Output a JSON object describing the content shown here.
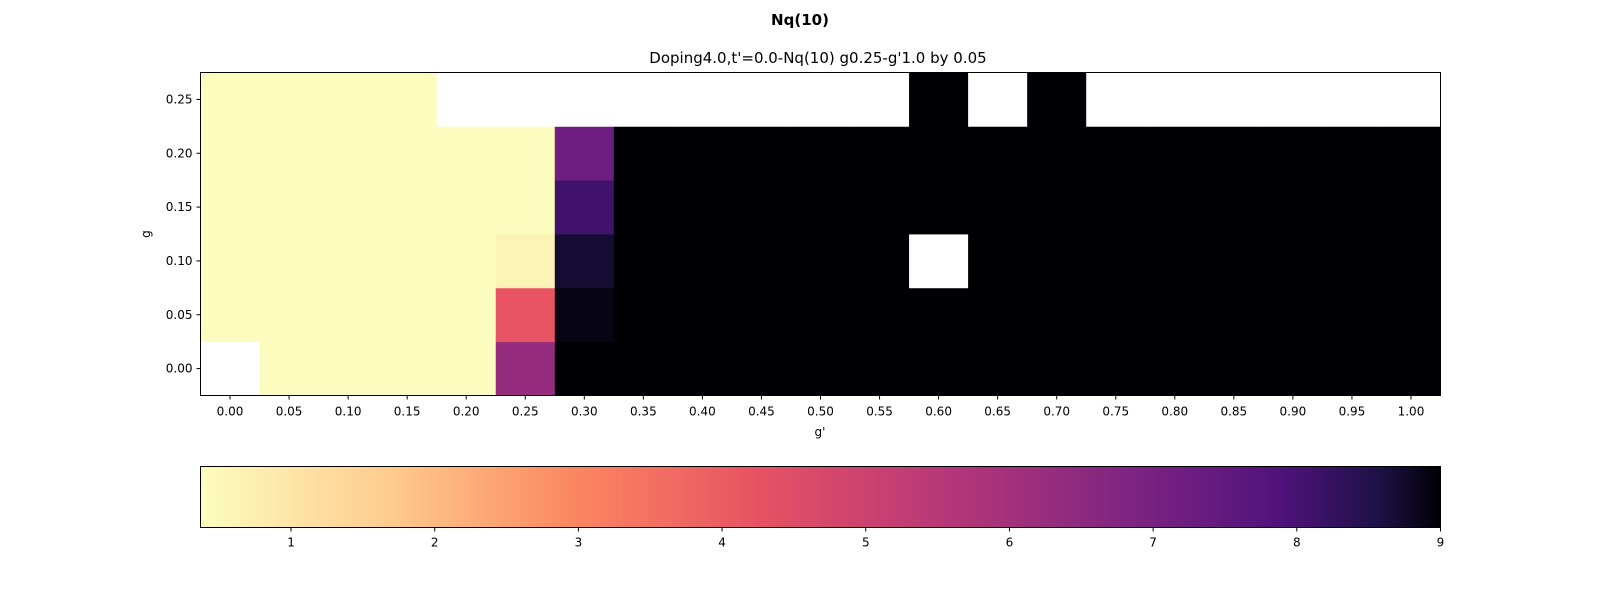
{
  "figure": {
    "suptitle": "Nq(10)"
  },
  "chart_data": {
    "type": "heatmap",
    "title": "Doping4.0,t'=0.0-Nq(10)  g0.25-g'1.0 by 0.05",
    "xlabel": "g'",
    "ylabel": "g",
    "x": [
      0.0,
      0.05,
      0.1,
      0.15,
      0.2,
      0.25,
      0.3,
      0.35,
      0.4,
      0.45,
      0.5,
      0.55,
      0.6,
      0.65,
      0.7,
      0.75,
      0.8,
      0.85,
      0.9,
      0.95,
      1.0
    ],
    "y": [
      0.0,
      0.05,
      0.1,
      0.15,
      0.2,
      0.25
    ],
    "x_tick_labels": [
      "0.00",
      "0.05",
      "0.10",
      "0.15",
      "0.20",
      "0.25",
      "0.30",
      "0.35",
      "0.40",
      "0.45",
      "0.50",
      "0.55",
      "0.60",
      "0.65",
      "0.70",
      "0.75",
      "0.80",
      "0.85",
      "0.90",
      "0.95",
      "1.00"
    ],
    "y_tick_labels": [
      "0.00",
      "0.05",
      "0.10",
      "0.15",
      "0.20",
      "0.25"
    ],
    "values": [
      [
        null,
        0.4,
        0.4,
        0.4,
        0.4,
        6.3,
        9.0,
        9.0,
        9.0,
        9.0,
        9.0,
        9.0,
        9.0,
        9.0,
        9.0,
        9.0,
        9.0,
        9.0,
        9.0,
        9.0,
        9.0
      ],
      [
        0.4,
        0.4,
        0.4,
        0.4,
        0.4,
        4.2,
        8.9,
        9.0,
        9.0,
        9.0,
        9.0,
        9.0,
        9.0,
        9.0,
        9.0,
        9.0,
        9.0,
        9.0,
        9.0,
        9.0,
        9.0
      ],
      [
        0.4,
        0.4,
        0.4,
        0.4,
        0.4,
        0.6,
        8.7,
        9.0,
        9.0,
        9.0,
        9.0,
        9.0,
        null,
        9.0,
        9.0,
        9.0,
        9.0,
        9.0,
        9.0,
        9.0,
        9.0
      ],
      [
        0.4,
        0.4,
        0.4,
        0.4,
        0.4,
        0.4,
        8.1,
        9.0,
        9.0,
        9.0,
        9.0,
        9.0,
        9.0,
        9.0,
        9.0,
        9.0,
        9.0,
        9.0,
        9.0,
        9.0,
        9.0
      ],
      [
        0.4,
        0.4,
        0.4,
        0.4,
        0.4,
        0.4,
        7.2,
        9.0,
        9.0,
        9.0,
        9.0,
        9.0,
        9.0,
        9.0,
        9.0,
        9.0,
        9.0,
        9.0,
        9.0,
        9.0,
        9.0
      ],
      [
        0.4,
        0.4,
        0.4,
        0.4,
        null,
        null,
        null,
        null,
        null,
        null,
        null,
        null,
        9.0,
        null,
        9.0,
        null,
        null,
        null,
        null,
        null,
        null
      ]
    ],
    "colormap": "magma_r",
    "colorbar": {
      "orientation": "horizontal",
      "vmin": 0.37,
      "vmax": 9,
      "ticks": [
        1,
        2,
        3,
        4,
        5,
        6,
        7,
        8,
        9
      ],
      "tick_labels": [
        "1",
        "2",
        "3",
        "4",
        "5",
        "6",
        "7",
        "8",
        "9"
      ]
    },
    "missing_color": "#ffffff"
  }
}
